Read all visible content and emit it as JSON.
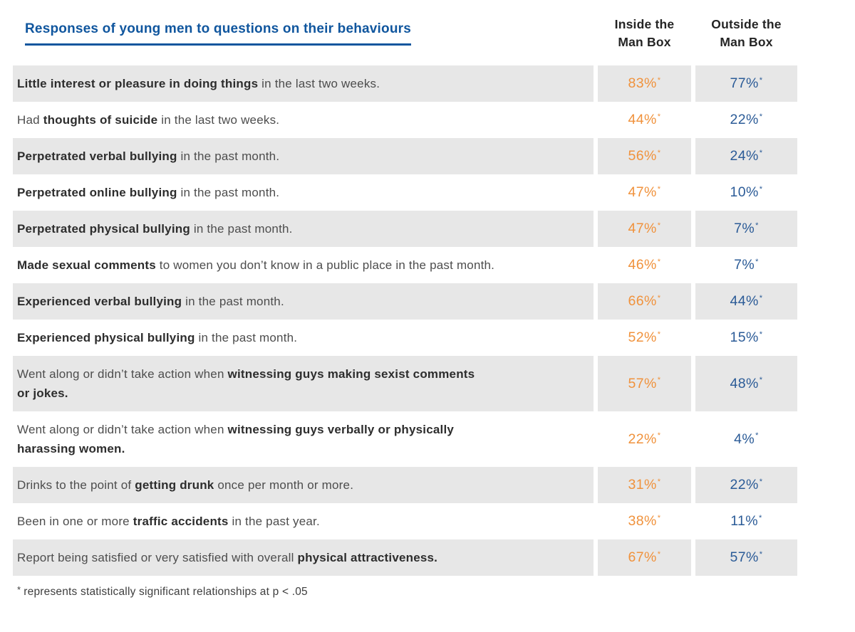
{
  "title": "Responses of young men to questions on their behaviours",
  "columns": {
    "inside": {
      "line1": "Inside the",
      "line2": "Man Box"
    },
    "outside": {
      "line1": "Outside the",
      "line2": "Man Box"
    }
  },
  "footnote": {
    "marker": "*",
    "text": "represents statistically significant relationships at p < .05"
  },
  "colors": {
    "title_blue": "#10569e",
    "inside_orange": "#f0923c",
    "outside_blue": "#2b5b97",
    "row_shade": "#e7e7e7"
  },
  "table": {
    "rows": [
      {
        "parts": [
          {
            "t": "Little interest or pleasure in doing things",
            "b": true
          },
          {
            "t": " in the last two weeks.",
            "b": false
          }
        ],
        "inside": "83%",
        "outside": "77%",
        "star": "*"
      },
      {
        "parts": [
          {
            "t": "Had ",
            "b": false
          },
          {
            "t": "thoughts of suicide",
            "b": true
          },
          {
            "t": " in the last two weeks.",
            "b": false
          }
        ],
        "inside": "44%",
        "outside": "22%",
        "star": "*"
      },
      {
        "parts": [
          {
            "t": "Perpetrated verbal bullying",
            "b": true
          },
          {
            "t": " in the past month.",
            "b": false
          }
        ],
        "inside": "56%",
        "outside": "24%",
        "star": "*"
      },
      {
        "parts": [
          {
            "t": "Perpetrated online bullying",
            "b": true
          },
          {
            "t": " in the past month.",
            "b": false
          }
        ],
        "inside": "47%",
        "outside": "10%",
        "star": "*"
      },
      {
        "parts": [
          {
            "t": "Perpetrated physical bullying",
            "b": true
          },
          {
            "t": " in the past month.",
            "b": false
          }
        ],
        "inside": "47%",
        "outside": "7%",
        "star": "*"
      },
      {
        "parts": [
          {
            "t": "Made sexual comments",
            "b": true
          },
          {
            "t": " to women you don’t know in a public place in the past month.",
            "b": false
          }
        ],
        "inside": "46%",
        "outside": "7%",
        "star": "*"
      },
      {
        "parts": [
          {
            "t": "Experienced verbal bullying",
            "b": true
          },
          {
            "t": " in the past month.",
            "b": false
          }
        ],
        "inside": "66%",
        "outside": "44%",
        "star": "*"
      },
      {
        "parts": [
          {
            "t": "Experienced physical bullying",
            "b": true
          },
          {
            "t": " in the past month.",
            "b": false
          }
        ],
        "inside": "52%",
        "outside": "15%",
        "star": "*"
      },
      {
        "parts": [
          {
            "t": "Went along or didn’t take action when ",
            "b": false
          },
          {
            "t": "witnessing guys making sexist comments",
            "b": true
          },
          {
            "br": true
          },
          {
            "t": "or jokes.",
            "b": true
          }
        ],
        "inside": "57%",
        "outside": "48%",
        "star": "*"
      },
      {
        "parts": [
          {
            "t": "Went along or didn’t take action when ",
            "b": false
          },
          {
            "t": "witnessing guys verbally or physically",
            "b": true
          },
          {
            "br": true
          },
          {
            "t": "harassing women.",
            "b": true
          }
        ],
        "inside": "22%",
        "outside": "4%",
        "star": "*"
      },
      {
        "parts": [
          {
            "t": "Drinks to the point of ",
            "b": false
          },
          {
            "t": "getting drunk",
            "b": true
          },
          {
            "t": " once per month or more.",
            "b": false
          }
        ],
        "inside": "31%",
        "outside": "22%",
        "star": "*"
      },
      {
        "parts": [
          {
            "t": "Been in one or more ",
            "b": false
          },
          {
            "t": "traffic accidents",
            "b": true
          },
          {
            "t": " in the past year.",
            "b": false
          }
        ],
        "inside": "38%",
        "outside": "11%",
        "star": "*"
      },
      {
        "parts": [
          {
            "t": "Report being satisfied or very satisfied with overall ",
            "b": false
          },
          {
            "t": "physical attractiveness.",
            "b": true
          }
        ],
        "inside": "67%",
        "outside": "57%",
        "star": "*"
      }
    ]
  },
  "chart_data": {
    "type": "table",
    "title": "Responses of young men to questions on their behaviours",
    "columns": [
      "Inside the Man Box",
      "Outside the Man Box"
    ],
    "categories": [
      "Little interest or pleasure in doing things in the last two weeks.",
      "Had thoughts of suicide in the last two weeks.",
      "Perpetrated verbal bullying in the past month.",
      "Perpetrated online bullying in the past month.",
      "Perpetrated physical bullying in the past month.",
      "Made sexual comments to women you don’t know in a public place in the past month.",
      "Experienced verbal bullying in the past month.",
      "Experienced physical bullying in the past month.",
      "Went along or didn’t take action when witnessing guys making sexist comments or jokes.",
      "Went along or didn’t take action when witnessing guys verbally or physically harassing women.",
      "Drinks to the point of getting drunk once per month or more.",
      "Been in one or more traffic accidents in the past year.",
      "Report being satisfied or very satisfied with overall physical attractiveness."
    ],
    "series": [
      {
        "name": "Inside the Man Box",
        "unit": "%",
        "color": "#f0923c",
        "values": [
          83,
          44,
          56,
          47,
          47,
          46,
          66,
          52,
          57,
          22,
          31,
          38,
          67
        ]
      },
      {
        "name": "Outside the Man Box",
        "unit": "%",
        "color": "#2b5b97",
        "values": [
          77,
          22,
          24,
          10,
          7,
          7,
          44,
          15,
          48,
          4,
          22,
          11,
          57
        ]
      }
    ],
    "all_values_marked_significant": true,
    "footnote": "* represents statistically significant relationships at p < .05"
  }
}
